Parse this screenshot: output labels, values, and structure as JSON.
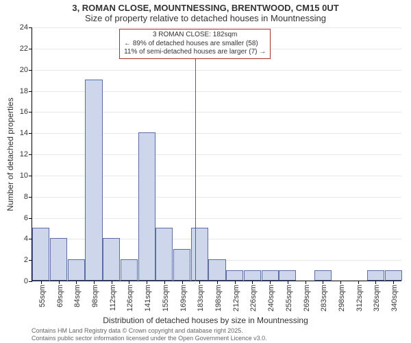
{
  "chart": {
    "type": "histogram",
    "title_line1": "3, ROMAN CLOSE, MOUNTNESSING, BRENTWOOD, CM15 0UT",
    "title_line2": "Size of property relative to detached houses in Mountnessing",
    "x_axis_label": "Distribution of detached houses by size in Mountnessing",
    "y_axis_label": "Number of detached properties",
    "background_color": "#ffffff",
    "grid_color": "#e7e7e9",
    "axis_color": "#000000",
    "bar_fill": "#cdd6ea",
    "bar_border": "#5b6ea4",
    "marker_color": "#c33333",
    "label_color": "#333333",
    "title_fontsize": 13,
    "label_fontsize": 12,
    "tick_fontsize": 11,
    "callout_fontsize": 10,
    "y_axis": {
      "min": 0,
      "max": 24,
      "tick_step": 2,
      "ticks": [
        0,
        2,
        4,
        6,
        8,
        10,
        12,
        14,
        16,
        18,
        20,
        22,
        24
      ]
    },
    "x_axis": {
      "unit": "sqm",
      "bin_start": 48,
      "bin_width": 14.5,
      "tick_labels": [
        "55sqm",
        "69sqm",
        "84sqm",
        "98sqm",
        "112sqm",
        "126sqm",
        "141sqm",
        "155sqm",
        "169sqm",
        "183sqm",
        "198sqm",
        "212sqm",
        "226sqm",
        "240sqm",
        "255sqm",
        "269sqm",
        "283sqm",
        "298sqm",
        "312sqm",
        "326sqm",
        "340sqm"
      ]
    },
    "bars": [
      {
        "i": 0,
        "value": 5
      },
      {
        "i": 1,
        "value": 4
      },
      {
        "i": 2,
        "value": 2
      },
      {
        "i": 3,
        "value": 19
      },
      {
        "i": 4,
        "value": 4
      },
      {
        "i": 5,
        "value": 2
      },
      {
        "i": 6,
        "value": 14
      },
      {
        "i": 7,
        "value": 5
      },
      {
        "i": 8,
        "value": 3
      },
      {
        "i": 9,
        "value": 5
      },
      {
        "i": 10,
        "value": 2
      },
      {
        "i": 11,
        "value": 1
      },
      {
        "i": 12,
        "value": 1
      },
      {
        "i": 13,
        "value": 1
      },
      {
        "i": 14,
        "value": 1
      },
      {
        "i": 15,
        "value": 0
      },
      {
        "i": 16,
        "value": 1
      },
      {
        "i": 17,
        "value": 0
      },
      {
        "i": 18,
        "value": 0
      },
      {
        "i": 19,
        "value": 1
      },
      {
        "i": 20,
        "value": 1
      }
    ],
    "marker": {
      "value_sqm": 182,
      "bin_index_right_edge": 9.24,
      "line1": "3 ROMAN CLOSE: 182sqm",
      "line2": "← 89% of detached houses are smaller (58)",
      "line3": "11% of semi-detached houses are larger (7) →"
    }
  },
  "footer": {
    "line1": "Contains HM Land Registry data © Crown copyright and database right 2025.",
    "line2": "Contains public sector information licensed under the Open Government Licence v3.0."
  }
}
